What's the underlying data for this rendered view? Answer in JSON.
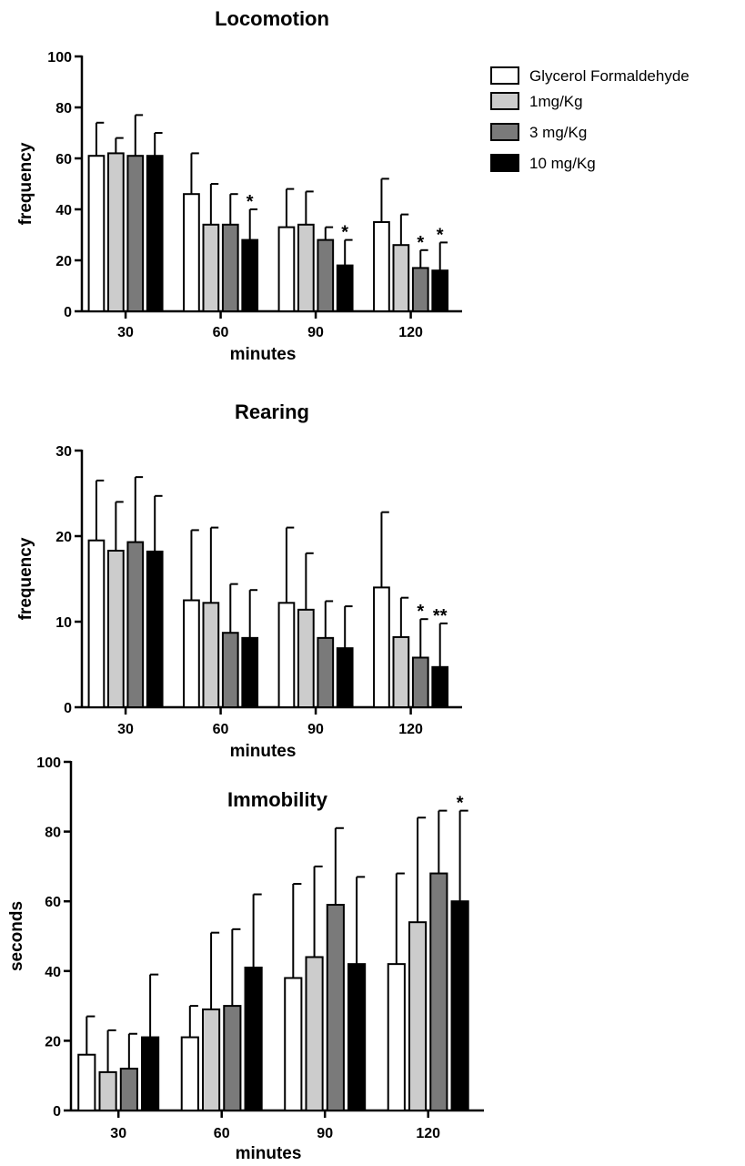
{
  "legend": {
    "entries": [
      {
        "label": "Glycerol Formaldehyde",
        "color": "#ffffff"
      },
      {
        "label": "1mg/Kg",
        "color": "#cccccc"
      },
      {
        "label": "3 mg/Kg",
        "color": "#7a7a7a"
      },
      {
        "label": "10 mg/Kg",
        "color": "#000000"
      }
    ]
  },
  "chart_data": [
    {
      "type": "bar",
      "title": "Locomotion",
      "xlabel": "minutes",
      "ylabel": "frequency",
      "ylim": [
        0,
        100
      ],
      "yticks": [
        0,
        20,
        40,
        60,
        80,
        100
      ],
      "categories": [
        "30",
        "60",
        "90",
        "120"
      ],
      "series": [
        {
          "name": "Glycerol Formaldehyde",
          "values": [
            61,
            46,
            33,
            35
          ],
          "errors": [
            13,
            16,
            15,
            17
          ],
          "stars": [
            "",
            "",
            "",
            ""
          ]
        },
        {
          "name": "1mg/Kg",
          "values": [
            62,
            34,
            34,
            26
          ],
          "errors": [
            6,
            16,
            13,
            12
          ],
          "stars": [
            "",
            "",
            "",
            ""
          ]
        },
        {
          "name": "3 mg/Kg",
          "values": [
            61,
            34,
            28,
            17
          ],
          "errors": [
            16,
            12,
            5,
            7
          ],
          "stars": [
            "",
            "",
            "",
            "*"
          ]
        },
        {
          "name": "10 mg/Kg",
          "values": [
            61,
            28,
            18,
            16
          ],
          "errors": [
            9,
            12,
            10,
            11
          ],
          "stars": [
            "",
            "*",
            "*",
            "*"
          ]
        }
      ]
    },
    {
      "type": "bar",
      "title": "Rearing",
      "xlabel": "minutes",
      "ylabel": "frequency",
      "ylim": [
        0,
        30
      ],
      "yticks": [
        0,
        10,
        20,
        30
      ],
      "categories": [
        "30",
        "60",
        "90",
        "120"
      ],
      "series": [
        {
          "name": "Glycerol Formaldehyde",
          "values": [
            19.5,
            12.5,
            12.2,
            14.0
          ],
          "errors": [
            7.0,
            8.2,
            8.8,
            8.8
          ],
          "stars": [
            "",
            "",
            "",
            ""
          ]
        },
        {
          "name": "1mg/Kg",
          "values": [
            18.3,
            12.2,
            11.4,
            8.2
          ],
          "errors": [
            5.7,
            8.8,
            6.6,
            4.6
          ],
          "stars": [
            "",
            "",
            "",
            ""
          ]
        },
        {
          "name": "3 mg/Kg",
          "values": [
            19.3,
            8.7,
            8.1,
            5.8
          ],
          "errors": [
            7.6,
            5.7,
            4.3,
            4.5
          ],
          "stars": [
            "",
            "",
            "",
            "*"
          ]
        },
        {
          "name": "10 mg/Kg",
          "values": [
            18.2,
            8.1,
            6.9,
            4.7
          ],
          "errors": [
            6.5,
            5.6,
            4.9,
            5.1
          ],
          "stars": [
            "",
            "",
            "",
            "**"
          ]
        }
      ]
    },
    {
      "type": "bar",
      "title": "Immobility",
      "xlabel": "minutes",
      "ylabel": "seconds",
      "ylim": [
        0,
        100
      ],
      "yticks": [
        0,
        20,
        40,
        60,
        80,
        100
      ],
      "categories": [
        "30",
        "60",
        "90",
        "120"
      ],
      "series": [
        {
          "name": "Glycerol Formaldehyde",
          "values": [
            16,
            21,
            38,
            42
          ],
          "errors": [
            11,
            9,
            27,
            26
          ],
          "stars": [
            "",
            "",
            "",
            ""
          ]
        },
        {
          "name": "1mg/Kg",
          "values": [
            11,
            29,
            44,
            54
          ],
          "errors": [
            12,
            22,
            26,
            30
          ],
          "stars": [
            "",
            "",
            "",
            ""
          ]
        },
        {
          "name": "3 mg/Kg",
          "values": [
            12,
            30,
            59,
            68
          ],
          "errors": [
            10,
            22,
            22,
            18
          ],
          "stars": [
            "",
            "",
            "",
            ""
          ]
        },
        {
          "name": "10 mg/Kg",
          "values": [
            21,
            41,
            42,
            60
          ],
          "errors": [
            18,
            21,
            25,
            26
          ],
          "stars": [
            "",
            "",
            "",
            "*"
          ]
        }
      ]
    }
  ]
}
